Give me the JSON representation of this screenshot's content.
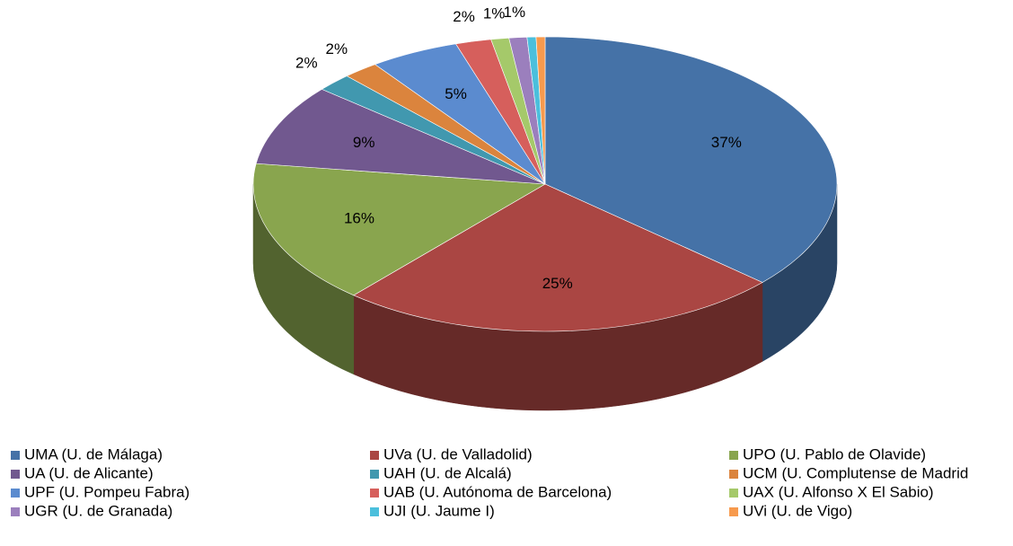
{
  "chart_data": {
    "type": "pie",
    "categories": [
      "UMA (U. de Málaga)",
      "UVa (U. de Valladolid)",
      "UPO (U. Pablo de Olavide)",
      "UA (U. de Alicante)",
      "UAH (U. de Alcalá)",
      "UCM (U. Complutense de Madrid",
      "UPF (U. Pompeu Fabra)",
      "UAB (U. Autónoma de Barcelona)",
      "UAX (U. Alfonso X El Sabio)",
      "UGR (U. de Granada)",
      "UJI (U. Jaume I)",
      "UVi (U. de Vigo)"
    ],
    "values": [
      37,
      25,
      16,
      9,
      2,
      2,
      5,
      2,
      1,
      1,
      0.5,
      0.5
    ],
    "value_labels": [
      "37%",
      "25%",
      "16%",
      "9%",
      "2%",
      "2%",
      "5%",
      "2%",
      "1%",
      "1%",
      null,
      null
    ],
    "colors": [
      "#4572a7",
      "#aa4643",
      "#89a54e",
      "#71588f",
      "#4198af",
      "#db843d",
      "#5b8bcf",
      "#d65f5c",
      "#a5c96a",
      "#9b7fbd",
      "#4bbfdc",
      "#f79a4d"
    ],
    "legend": "bottom"
  }
}
